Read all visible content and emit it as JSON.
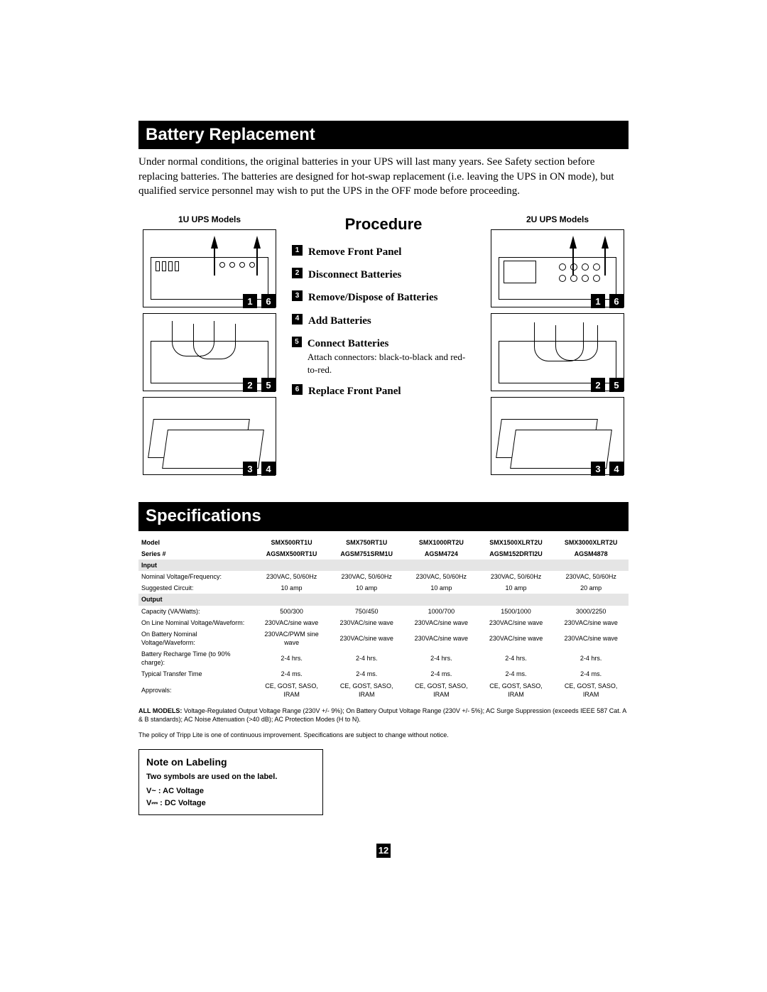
{
  "sections": {
    "battery_title": "Battery Replacement",
    "spec_title": "Specifications",
    "procedure_title": "Procedure"
  },
  "intro": "Under normal conditions, the original batteries in your UPS will last many years. See Safety section before replacing batteries. The batteries are designed for hot-swap replacement (i.e. leaving the UPS in ON mode), but qualified service personnel may wish to put the UPS in the OFF mode before proceeding.",
  "heads": {
    "left": "1U UPS Models",
    "right": "2U UPS Models"
  },
  "steps": [
    {
      "n": "1",
      "label": "Remove Front Panel"
    },
    {
      "n": "2",
      "label": "Disconnect Batteries"
    },
    {
      "n": "3",
      "label": "Remove/Dispose of Batteries"
    },
    {
      "n": "4",
      "label": "Add Batteries"
    },
    {
      "n": "5",
      "label": "Connect Batteries",
      "sub": "Attach connectors: black-to-black and red-to-red."
    },
    {
      "n": "6",
      "label": "Replace Front Panel"
    }
  ],
  "spec": {
    "columns": [
      "",
      "SMX500RT1U",
      "SMX750RT1U",
      "SMX1000RT2U",
      "SMX1500XLRT2U",
      "SMX3000XLRT2U"
    ],
    "series_label": "Series #",
    "series": [
      "AGSMX500RT1U",
      "AGSM751SRM1U",
      "AGSM4724",
      "AGSM152DRTI2U",
      "AGSM4878"
    ],
    "model_label": "Model",
    "sections": {
      "input": "Input",
      "output": "Output"
    },
    "rows_input": [
      {
        "label": "Nominal Voltage/Frequency:",
        "v": [
          "230VAC, 50/60Hz",
          "230VAC, 50/60Hz",
          "230VAC, 50/60Hz",
          "230VAC, 50/60Hz",
          "230VAC, 50/60Hz"
        ]
      },
      {
        "label": "Suggested Circuit:",
        "v": [
          "10 amp",
          "10 amp",
          "10 amp",
          "10 amp",
          "20 amp"
        ]
      }
    ],
    "rows_output": [
      {
        "label": "Capacity (VA/Watts):",
        "v": [
          "500/300",
          "750/450",
          "1000/700",
          "1500/1000",
          "3000/2250"
        ]
      },
      {
        "label": "On Line Nominal Voltage/Waveform:",
        "v": [
          "230VAC/sine wave",
          "230VAC/sine wave",
          "230VAC/sine wave",
          "230VAC/sine wave",
          "230VAC/sine wave"
        ]
      },
      {
        "label": "On Battery Nominal Voltage/Waveform:",
        "v": [
          "230VAC/PWM sine wave",
          "230VAC/sine wave",
          "230VAC/sine wave",
          "230VAC/sine wave",
          "230VAC/sine wave"
        ]
      },
      {
        "label": "Battery Recharge Time (to 90% charge):",
        "v": [
          "2-4 hrs.",
          "2-4 hrs.",
          "2-4 hrs.",
          "2-4 hrs.",
          "2-4 hrs."
        ]
      },
      {
        "label": "Typical Transfer Time",
        "v": [
          "2-4 ms.",
          "2-4 ms.",
          "2-4 ms.",
          "2-4 ms.",
          "2-4 ms."
        ]
      },
      {
        "label": "Approvals:",
        "v": [
          "CE, GOST, SASO, IRAM",
          "CE, GOST, SASO, IRAM",
          "CE, GOST, SASO, IRAM",
          "CE, GOST, SASO, IRAM",
          "CE, GOST, SASO, IRAM"
        ]
      }
    ]
  },
  "allmodels_label": "ALL MODELS:",
  "allmodels": " Voltage-Regulated Output Voltage Range (230V +/- 9%); On Battery Output Voltage Range (230V +/- 5%); AC Surge Suppression (exceeds IEEE 587 Cat. A & B standards); AC Noise Attenuation (>40 dB); AC Protection Modes (H to N).",
  "policy": "The policy of Tripp Lite is one of continuous improvement. Specifications are subject to change without notice.",
  "labelbox": {
    "title": "Note on Labeling",
    "line1": "Two symbols are used on the label.",
    "line2": "V~  : AC Voltage",
    "line3": "V⎓ : DC Voltage"
  },
  "page": "12"
}
